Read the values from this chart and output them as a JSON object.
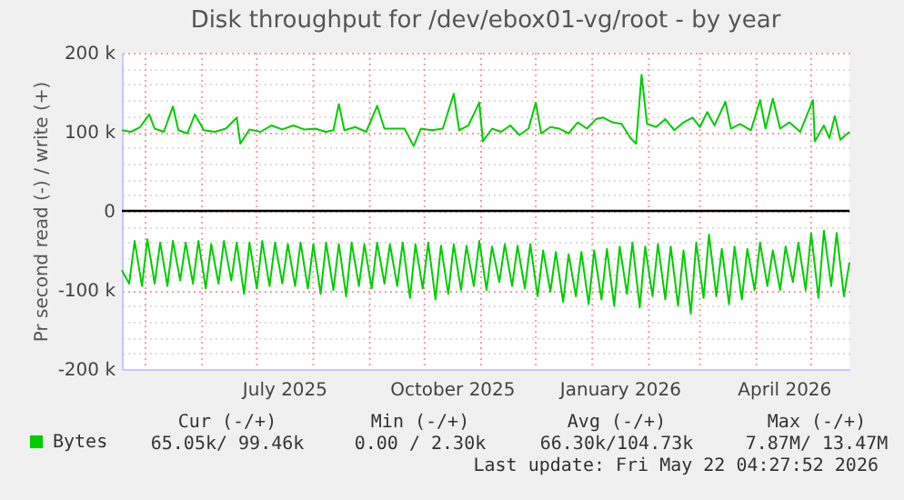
{
  "chart_data": {
    "type": "line",
    "title": "Disk throughput for /dev/ebox01-vg/root - by year",
    "ylabel": "Pr second read (-) / write (+)",
    "xlim": [
      "2025-04-18",
      "2026-05-22"
    ],
    "xticks": [
      {
        "value": "2025-05-01",
        "label": null
      },
      {
        "value": "2025-06-01",
        "label": null
      },
      {
        "value": "2025-07-01",
        "label": null
      },
      {
        "value": "2025-07-16",
        "label": "July 2025"
      },
      {
        "value": "2025-08-01",
        "label": null
      },
      {
        "value": "2025-09-01",
        "label": null
      },
      {
        "value": "2025-10-01",
        "label": null
      },
      {
        "value": "2025-10-16",
        "label": "October 2025"
      },
      {
        "value": "2025-11-01",
        "label": null
      },
      {
        "value": "2025-12-01",
        "label": null
      },
      {
        "value": "2026-01-01",
        "label": null
      },
      {
        "value": "2026-01-16",
        "label": "January 2026"
      },
      {
        "value": "2026-02-01",
        "label": null
      },
      {
        "value": "2026-03-01",
        "label": null
      },
      {
        "value": "2026-04-01",
        "label": null
      },
      {
        "value": "2026-04-16",
        "label": "April 2026"
      },
      {
        "value": "2026-05-01",
        "label": null
      }
    ],
    "ylim": [
      -200000,
      200000
    ],
    "yticks": [
      {
        "value": -200000,
        "label": "-200 k"
      },
      {
        "value": -180000,
        "label": null
      },
      {
        "value": -160000,
        "label": null
      },
      {
        "value": -140000,
        "label": null
      },
      {
        "value": -120000,
        "label": null
      },
      {
        "value": -100000,
        "label": "-100 k"
      },
      {
        "value": -80000,
        "label": null
      },
      {
        "value": -60000,
        "label": null
      },
      {
        "value": -40000,
        "label": null
      },
      {
        "value": -20000,
        "label": null
      },
      {
        "value": 0,
        "label": "0"
      },
      {
        "value": 20000,
        "label": null
      },
      {
        "value": 40000,
        "label": null
      },
      {
        "value": 60000,
        "label": null
      },
      {
        "value": 80000,
        "label": null
      },
      {
        "value": 100000,
        "label": "100 k"
      },
      {
        "value": 120000,
        "label": null
      },
      {
        "value": 140000,
        "label": null
      },
      {
        "value": 160000,
        "label": null
      },
      {
        "value": 180000,
        "label": null
      },
      {
        "value": 200000,
        "label": "200 k"
      }
    ],
    "grid": true,
    "legend": "bottom left",
    "marker": "none",
    "line_style": "solid",
    "ref_lines": [
      {
        "axis": "y",
        "value": 0,
        "color": "#000000"
      }
    ],
    "annotations": [
      "Cur (-/+)",
      "Min (-/+)",
      "Avg (-/+)",
      "Max (-/+)",
      "65.05k/ 99.46k",
      "0.00 /   2.30k",
      "66.30k/104.73k",
      "7.87M/ 13.47M",
      "Last update: Fri May 22 04:27:52 2026"
    ],
    "series": [
      {
        "name": "Bytes",
        "color": "#00cc00",
        "x": [
          "2025-04-18",
          "2025-04-23",
          "2025-04-28",
          "2025-05-03",
          "2025-05-06",
          "2025-05-11",
          "2025-05-16",
          "2025-05-19",
          "2025-05-24",
          "2025-05-28",
          "2025-06-02",
          "2025-06-08",
          "2025-06-14",
          "2025-06-20",
          "2025-06-22",
          "2025-06-27",
          "2025-07-03",
          "2025-07-09",
          "2025-07-15",
          "2025-07-21",
          "2025-07-27",
          "2025-08-02",
          "2025-08-08",
          "2025-08-12",
          "2025-08-15",
          "2025-08-18",
          "2025-08-24",
          "2025-08-30",
          "2025-09-05",
          "2025-09-09",
          "2025-09-15",
          "2025-09-20",
          "2025-09-25",
          "2025-09-29",
          "2025-10-05",
          "2025-10-11",
          "2025-10-17",
          "2025-10-20",
          "2025-10-25",
          "2025-10-31",
          "2025-11-02",
          "2025-11-07",
          "2025-11-12",
          "2025-11-17",
          "2025-11-22",
          "2025-11-27",
          "2025-12-01",
          "2025-12-04",
          "2025-12-09",
          "2025-12-14",
          "2025-12-19",
          "2025-12-24",
          "2025-12-29",
          "2026-01-03",
          "2026-01-07",
          "2026-01-12",
          "2026-01-17",
          "2026-01-22",
          "2026-01-25",
          "2026-01-28",
          "2026-01-31",
          "2026-02-05",
          "2026-02-10",
          "2026-02-15",
          "2026-02-20",
          "2026-02-25",
          "2026-03-01",
          "2026-03-05",
          "2026-03-09",
          "2026-03-15",
          "2026-03-18",
          "2026-03-23",
          "2026-03-29",
          "2026-04-03",
          "2026-04-06",
          "2026-04-10",
          "2026-04-14",
          "2026-04-19",
          "2026-04-25",
          "2026-05-02",
          "2026-05-03",
          "2026-05-08",
          "2026-05-11",
          "2026-05-14",
          "2026-05-17",
          "2026-05-22"
        ],
        "values": [
          102000,
          100000,
          106000,
          122000,
          104000,
          100000,
          132000,
          102000,
          98000,
          122000,
          102000,
          100000,
          104000,
          118000,
          85000,
          103000,
          100000,
          108000,
          103000,
          108000,
          103000,
          104000,
          100000,
          102000,
          135000,
          102000,
          106000,
          100000,
          133000,
          104000,
          104000,
          104000,
          82000,
          104000,
          102000,
          104000,
          148000,
          102000,
          108000,
          137000,
          88000,
          104000,
          100000,
          108000,
          96000,
          104000,
          137000,
          98000,
          106000,
          104000,
          98000,
          112000,
          104000,
          116000,
          118000,
          112000,
          110000,
          92000,
          85000,
          172000,
          110000,
          106000,
          116000,
          102000,
          112000,
          118000,
          106000,
          125000,
          108000,
          138000,
          104000,
          110000,
          102000,
          140000,
          104000,
          142000,
          104000,
          112000,
          100000,
          140000,
          88000,
          108000,
          92000,
          120000,
          90000,
          100000
        ]
      },
      {
        "color": "#00cc00",
        "x": [
          "2025-04-18",
          "2025-04-22",
          "2025-04-25",
          "2025-04-29",
          "2025-05-02",
          "2025-05-06",
          "2025-05-09",
          "2025-05-13",
          "2025-05-16",
          "2025-05-20",
          "2025-05-23",
          "2025-05-27",
          "2025-05-30",
          "2025-06-03",
          "2025-06-06",
          "2025-06-10",
          "2025-06-13",
          "2025-06-17",
          "2025-06-20",
          "2025-06-24",
          "2025-06-27",
          "2025-07-01",
          "2025-07-04",
          "2025-07-08",
          "2025-07-11",
          "2025-07-15",
          "2025-07-18",
          "2025-07-22",
          "2025-07-25",
          "2025-07-29",
          "2025-08-01",
          "2025-08-05",
          "2025-08-08",
          "2025-08-12",
          "2025-08-15",
          "2025-08-19",
          "2025-08-22",
          "2025-08-26",
          "2025-08-29",
          "2025-09-02",
          "2025-09-05",
          "2025-09-09",
          "2025-09-12",
          "2025-09-16",
          "2025-09-19",
          "2025-09-23",
          "2025-09-26",
          "2025-09-30",
          "2025-10-03",
          "2025-10-07",
          "2025-10-10",
          "2025-10-14",
          "2025-10-17",
          "2025-10-21",
          "2025-10-24",
          "2025-10-28",
          "2025-10-31",
          "2025-11-04",
          "2025-11-07",
          "2025-11-11",
          "2025-11-14",
          "2025-11-18",
          "2025-11-21",
          "2025-11-25",
          "2025-11-28",
          "2025-12-02",
          "2025-12-05",
          "2025-12-09",
          "2025-12-12",
          "2025-12-16",
          "2025-12-19",
          "2025-12-23",
          "2025-12-26",
          "2025-12-30",
          "2026-01-02",
          "2026-01-06",
          "2026-01-09",
          "2026-01-13",
          "2026-01-16",
          "2026-01-20",
          "2026-01-23",
          "2026-01-27",
          "2026-01-30",
          "2026-02-03",
          "2026-02-06",
          "2026-02-10",
          "2026-02-13",
          "2026-02-17",
          "2026-02-20",
          "2026-02-24",
          "2026-02-27",
          "2026-03-03",
          "2026-03-06",
          "2026-03-10",
          "2026-03-13",
          "2026-03-17",
          "2026-03-20",
          "2026-03-24",
          "2026-03-27",
          "2026-03-31",
          "2026-04-03",
          "2026-04-07",
          "2026-04-10",
          "2026-04-14",
          "2026-04-17",
          "2026-04-21",
          "2026-04-24",
          "2026-04-28",
          "2026-05-01",
          "2026-05-05",
          "2026-05-08",
          "2026-05-12",
          "2026-05-15",
          "2026-05-19",
          "2026-05-22"
        ],
        "values": [
          -75000,
          -92000,
          -38000,
          -95000,
          -36000,
          -92000,
          -40000,
          -95000,
          -38000,
          -88000,
          -40000,
          -92000,
          -38000,
          -98000,
          -42000,
          -92000,
          -38000,
          -88000,
          -40000,
          -105000,
          -40000,
          -98000,
          -38000,
          -95000,
          -40000,
          -92000,
          -42000,
          -95000,
          -40000,
          -98000,
          -42000,
          -105000,
          -40000,
          -100000,
          -42000,
          -108000,
          -40000,
          -95000,
          -42000,
          -98000,
          -40000,
          -92000,
          -42000,
          -95000,
          -40000,
          -110000,
          -42000,
          -98000,
          -40000,
          -112000,
          -44000,
          -105000,
          -42000,
          -100000,
          -44000,
          -95000,
          -38000,
          -100000,
          -45000,
          -90000,
          -42000,
          -95000,
          -44000,
          -98000,
          -42000,
          -108000,
          -50000,
          -102000,
          -52000,
          -115000,
          -55000,
          -108000,
          -52000,
          -118000,
          -50000,
          -112000,
          -48000,
          -120000,
          -45000,
          -105000,
          -40000,
          -122000,
          -45000,
          -108000,
          -42000,
          -112000,
          -45000,
          -120000,
          -50000,
          -130000,
          -40000,
          -110000,
          -30000,
          -108000,
          -48000,
          -118000,
          -45000,
          -112000,
          -48000,
          -100000,
          -40000,
          -95000,
          -50000,
          -100000,
          -45000,
          -90000,
          -40000,
          -100000,
          -28000,
          -110000,
          -25000,
          -95000,
          -28000,
          -108000,
          -65000
        ]
      }
    ]
  }
}
